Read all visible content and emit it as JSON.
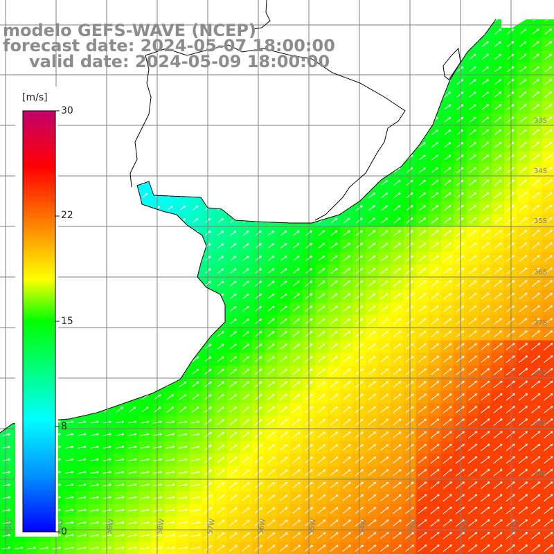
{
  "title": {
    "model_line": "modelo GEFS-WAVE (NCEP)",
    "forecast_line": "forecast date: 2024-05-07 18:00:00",
    "valid_line": "valid date: 2024-05-09 18:00:00"
  },
  "colorbar": {
    "unit": "[m/s]",
    "ticks": [
      "30",
      "22",
      "15",
      "8",
      "0"
    ],
    "tick_values": [
      30,
      22,
      15,
      8,
      0
    ],
    "min": 0,
    "max": 30,
    "stops": [
      {
        "v": 0,
        "color": "#0000ff"
      },
      {
        "v": 4,
        "color": "#0090ff"
      },
      {
        "v": 8,
        "color": "#00ffff"
      },
      {
        "v": 15,
        "color": "#00ff00"
      },
      {
        "v": 18,
        "color": "#ffff00"
      },
      {
        "v": 22,
        "color": "#ff8000"
      },
      {
        "v": 26,
        "color": "#ff0000"
      },
      {
        "v": 30,
        "color": "#c0006b"
      }
    ]
  },
  "lat_labels": [
    "33S",
    "34S",
    "35S",
    "36S",
    "37S",
    "38S",
    "39S",
    "40S"
  ],
  "lon_labels": [
    "61W",
    "60W",
    "59W",
    "58W",
    "57W",
    "56W",
    "55W",
    "54W",
    "53W",
    "52W",
    "51W"
  ],
  "colors": {
    "land": "#ffffff",
    "coast": "#000000",
    "grid": "#7f7f7f",
    "arrow": "#ffffff",
    "label": "#7f7f7f"
  }
}
